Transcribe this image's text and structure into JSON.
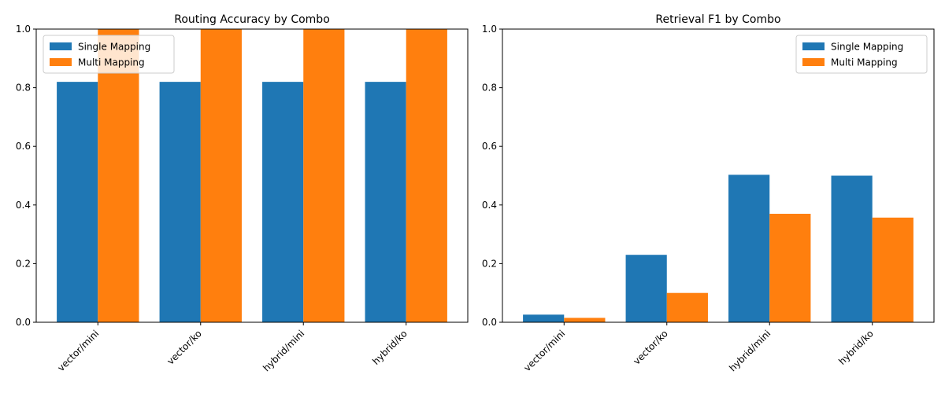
{
  "colors": {
    "single": "#1f77b4",
    "multi": "#ff7f0e"
  },
  "chart_data": [
    {
      "type": "bar",
      "title": "Routing Accuracy by Combo",
      "categories": [
        "vector/mini",
        "vector/ko",
        "hybrid/mini",
        "hybrid/ko"
      ],
      "series": [
        {
          "name": "Single Mapping",
          "values": [
            0.82,
            0.82,
            0.82,
            0.82
          ]
        },
        {
          "name": "Multi Mapping",
          "values": [
            1.0,
            1.0,
            1.0,
            1.0
          ]
        }
      ],
      "ylim": [
        0,
        1.0
      ],
      "yticks": [
        "0.0",
        "0.2",
        "0.4",
        "0.6",
        "0.8",
        "1.0"
      ],
      "legend_position": "upper-left",
      "grid": false
    },
    {
      "type": "bar",
      "title": "Retrieval F1 by Combo",
      "categories": [
        "vector/mini",
        "vector/ko",
        "hybrid/mini",
        "hybrid/ko"
      ],
      "series": [
        {
          "name": "Single Mapping",
          "values": [
            0.026,
            0.23,
            0.503,
            0.5
          ]
        },
        {
          "name": "Multi Mapping",
          "values": [
            0.015,
            0.1,
            0.37,
            0.357
          ]
        }
      ],
      "ylim": [
        0,
        1.0
      ],
      "yticks": [
        "0.0",
        "0.2",
        "0.4",
        "0.6",
        "0.8",
        "1.0"
      ],
      "legend_position": "upper-right",
      "grid": false
    }
  ]
}
